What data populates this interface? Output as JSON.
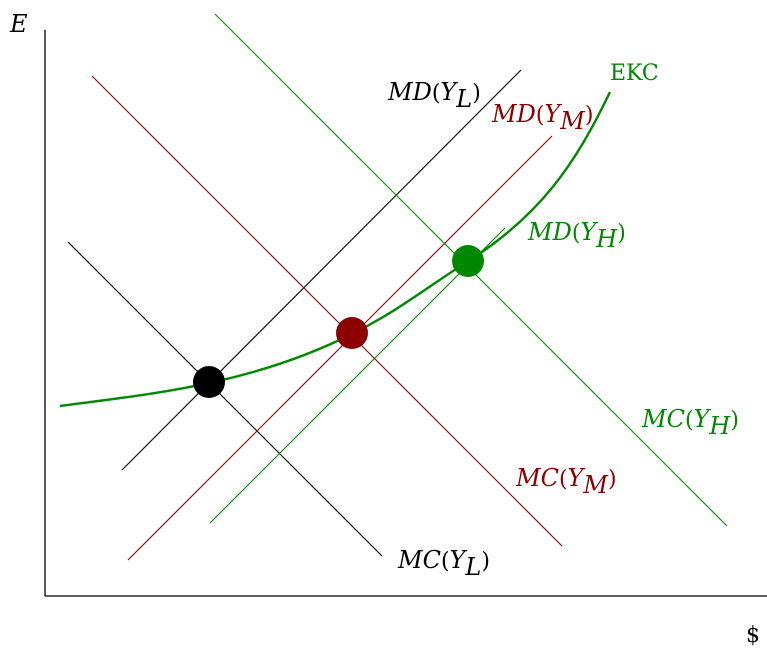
{
  "axes": {
    "y_label": "E",
    "x_label": "$"
  },
  "colors": {
    "low": "#000000",
    "mid": "#8b0000",
    "high": "#008800"
  },
  "curves": {
    "md_low": {
      "main": "MD",
      "open": "(",
      "sub": "L",
      "close": ")"
    },
    "md_mid": {
      "main": "MD",
      "open": "(",
      "sub": "M",
      "close": ")"
    },
    "md_high": {
      "main": "MD",
      "open": "(",
      "sub": "H",
      "close": ")"
    },
    "mc_low": {
      "main": "MC",
      "open": "(",
      "sub": "L",
      "close": ")"
    },
    "mc_mid": {
      "main": "MC",
      "open": "(",
      "sub": "M",
      "close": ")"
    },
    "mc_high": {
      "main": "MC",
      "open": "(",
      "sub": "H",
      "close": ")"
    },
    "ekc": "EKC"
  },
  "equilibria": [
    "low",
    "mid",
    "high"
  ]
}
